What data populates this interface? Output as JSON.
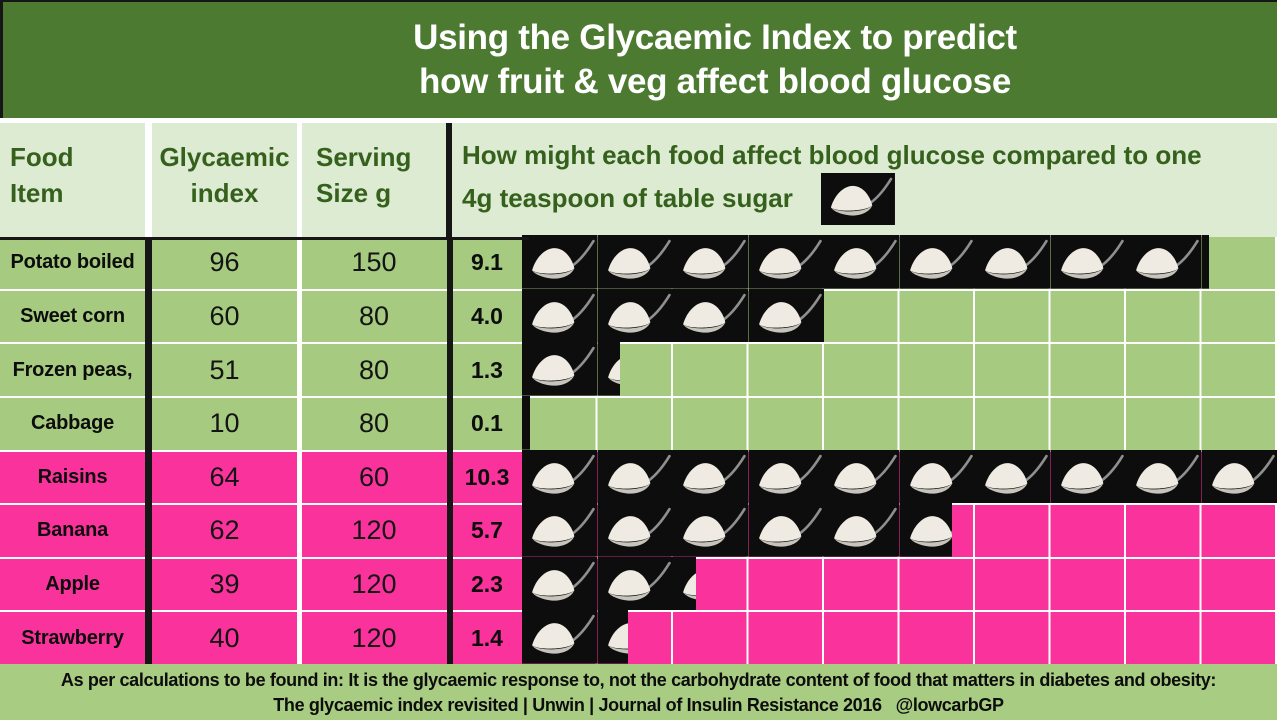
{
  "title": {
    "line1": "Using the Glycaemic Index to predict",
    "line2": "how fruit & veg affect blood glucose"
  },
  "header": {
    "food_line1": "Food",
    "food_line2": "Item",
    "gi_line1": "Glycaemic",
    "gi_line2": "index",
    "serving_line1": "Serving",
    "serving_line2": "Size g",
    "compare_line1": "How might each food affect blood glucose compared to one",
    "compare_line2": "4g teaspoon of table sugar"
  },
  "rows": [
    {
      "name": "Potato boiled",
      "gi": "96",
      "serving": "150",
      "teaspoons": "9.1",
      "teaspoons_value": 9.1,
      "group": "vegetable"
    },
    {
      "name": "Sweet corn",
      "gi": "60",
      "serving": "80",
      "teaspoons": "4.0",
      "teaspoons_value": 4.0,
      "group": "vegetable"
    },
    {
      "name": "Frozen peas,",
      "gi": "51",
      "serving": "80",
      "teaspoons": "1.3",
      "teaspoons_value": 1.3,
      "group": "vegetable"
    },
    {
      "name": "Cabbage",
      "gi": "10",
      "serving": "80",
      "teaspoons": "0.1",
      "teaspoons_value": 0.1,
      "group": "vegetable"
    },
    {
      "name": "Raisins",
      "gi": "64",
      "serving": "60",
      "teaspoons": "10.3",
      "teaspoons_value": 10.3,
      "group": "fruit"
    },
    {
      "name": "Banana",
      "gi": "62",
      "serving": "120",
      "teaspoons": "5.7",
      "teaspoons_value": 5.7,
      "group": "fruit"
    },
    {
      "name": "Apple",
      "gi": "39",
      "serving": "120",
      "teaspoons": "2.3",
      "teaspoons_value": 2.3,
      "group": "fruit"
    },
    {
      "name": "Strawberry",
      "gi": "40",
      "serving": "120",
      "teaspoons": "1.4",
      "teaspoons_value": 1.4,
      "group": "fruit"
    }
  ],
  "footer": {
    "line1": "As per calculations to be found in: It is the glycaemic response to, not the carbohydrate content of food that matters in diabetes and obesity:",
    "line2": "The glycaemic index revisited | Unwin | Journal of Insulin Resistance 2016   @lowcarbGP"
  },
  "icons": {
    "sugar_spoon": "sugar-spoon-icon"
  },
  "colors": {
    "title_bg": "#4d7a31",
    "title_text": "#ffffff",
    "header_cell_bg": "#dcebd2",
    "header_text": "#35611d",
    "veg_row_bg": "#a6ca7f",
    "fruit_row_bg": "#fa339c",
    "footer_bg": "#a9cc83",
    "spoon_tile_bg": "#0d0d0d",
    "divider_black": "#161616",
    "divider_white": "#ffffff"
  },
  "chart_data": {
    "type": "bar",
    "title": "Using the Glycaemic Index to predict how fruit & veg affect blood glucose",
    "subtitle": "How might each food affect blood glucose compared to one 4g teaspoon of table sugar",
    "categories": [
      "Potato boiled",
      "Sweet corn",
      "Frozen peas,",
      "Cabbage",
      "Raisins",
      "Banana",
      "Apple",
      "Strawberry"
    ],
    "series": [
      {
        "name": "Glycaemic index",
        "values": [
          96,
          60,
          51,
          10,
          64,
          62,
          39,
          40
        ]
      },
      {
        "name": "Serving Size g",
        "values": [
          150,
          80,
          80,
          80,
          60,
          120,
          120,
          120
        ]
      },
      {
        "name": "Teaspoons of table sugar equivalent",
        "values": [
          9.1,
          4.0,
          1.3,
          0.1,
          10.3,
          5.7,
          2.3,
          1.4
        ]
      }
    ],
    "pictogram_series": "Teaspoons of table sugar equivalent",
    "pictogram_unit": "one 4g teaspoon of table sugar",
    "groups": {
      "vegetables": [
        "Potato boiled",
        "Sweet corn",
        "Frozen peas,",
        "Cabbage"
      ],
      "fruit": [
        "Raisins",
        "Banana",
        "Apple",
        "Strawberry"
      ]
    },
    "xlabel": "Food Item",
    "ylabel": "4g teaspoons of table sugar",
    "ylim": [
      0,
      10
    ],
    "grid": true,
    "legend_position": "none",
    "source": "The glycaemic index revisited | Unwin | Journal of Insulin Resistance 2016 @lowcarbGP"
  }
}
